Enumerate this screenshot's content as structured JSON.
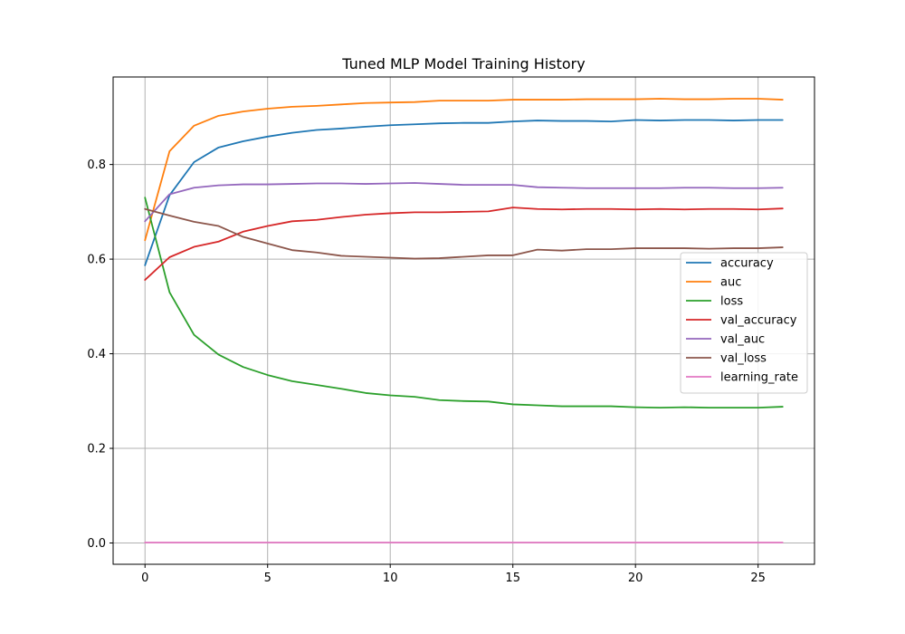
{
  "chart_data": {
    "type": "line",
    "title": "Tuned MLP Model Training History",
    "xlabel": "",
    "ylabel": "",
    "xlim": [
      -1.3,
      27.3
    ],
    "ylim": [
      -0.045,
      0.985
    ],
    "x_ticks": [
      0,
      5,
      10,
      15,
      20,
      25
    ],
    "y_ticks": [
      0.0,
      0.2,
      0.4,
      0.6,
      0.8
    ],
    "y_tick_labels": [
      "0.0",
      "0.2",
      "0.4",
      "0.6",
      "0.8"
    ],
    "grid": true,
    "legend_position": "center-right",
    "x": [
      0,
      1,
      2,
      3,
      4,
      5,
      6,
      7,
      8,
      9,
      10,
      11,
      12,
      13,
      14,
      15,
      16,
      17,
      18,
      19,
      20,
      21,
      22,
      23,
      24,
      25,
      26
    ],
    "series": [
      {
        "name": "accuracy",
        "color": "#1f77b4",
        "values": [
          0.587,
          0.735,
          0.805,
          0.836,
          0.849,
          0.859,
          0.867,
          0.873,
          0.876,
          0.88,
          0.883,
          0.885,
          0.887,
          0.888,
          0.888,
          0.891,
          0.893,
          0.892,
          0.892,
          0.891,
          0.894,
          0.893,
          0.894,
          0.894,
          0.893,
          0.894,
          0.894
        ]
      },
      {
        "name": "auc",
        "color": "#ff7f0e",
        "values": [
          0.64,
          0.828,
          0.882,
          0.903,
          0.912,
          0.918,
          0.922,
          0.924,
          0.927,
          0.93,
          0.931,
          0.932,
          0.935,
          0.935,
          0.935,
          0.937,
          0.937,
          0.937,
          0.938,
          0.938,
          0.938,
          0.939,
          0.938,
          0.938,
          0.939,
          0.939,
          0.937
        ]
      },
      {
        "name": "loss",
        "color": "#2ca02c",
        "values": [
          0.73,
          0.53,
          0.44,
          0.398,
          0.372,
          0.355,
          0.342,
          0.334,
          0.326,
          0.317,
          0.312,
          0.309,
          0.302,
          0.3,
          0.299,
          0.293,
          0.291,
          0.289,
          0.289,
          0.289,
          0.287,
          0.286,
          0.287,
          0.286,
          0.286,
          0.286,
          0.288
        ]
      },
      {
        "name": "val_accuracy",
        "color": "#d62728",
        "values": [
          0.556,
          0.604,
          0.626,
          0.637,
          0.658,
          0.67,
          0.68,
          0.683,
          0.689,
          0.694,
          0.697,
          0.699,
          0.699,
          0.7,
          0.701,
          0.709,
          0.706,
          0.705,
          0.706,
          0.706,
          0.705,
          0.706,
          0.705,
          0.706,
          0.706,
          0.705,
          0.707
        ]
      },
      {
        "name": "val_auc",
        "color": "#9467bd",
        "values": [
          0.68,
          0.737,
          0.751,
          0.756,
          0.758,
          0.758,
          0.759,
          0.76,
          0.76,
          0.759,
          0.76,
          0.761,
          0.759,
          0.757,
          0.757,
          0.757,
          0.752,
          0.751,
          0.75,
          0.75,
          0.75,
          0.75,
          0.751,
          0.751,
          0.75,
          0.75,
          0.751
        ]
      },
      {
        "name": "val_loss",
        "color": "#8c564b",
        "values": [
          0.706,
          0.692,
          0.679,
          0.67,
          0.647,
          0.633,
          0.619,
          0.614,
          0.607,
          0.605,
          0.603,
          0.601,
          0.602,
          0.605,
          0.608,
          0.608,
          0.62,
          0.618,
          0.621,
          0.621,
          0.623,
          0.623,
          0.623,
          0.622,
          0.623,
          0.623,
          0.625
        ]
      },
      {
        "name": "learning_rate",
        "color": "#e377c2",
        "values": [
          0.001,
          0.001,
          0.001,
          0.001,
          0.001,
          0.001,
          0.001,
          0.001,
          0.001,
          0.001,
          0.001,
          0.001,
          0.001,
          0.001,
          0.001,
          0.001,
          0.001,
          0.001,
          0.001,
          0.001,
          0.001,
          0.001,
          0.001,
          0.001,
          0.001,
          0.001,
          0.001
        ]
      }
    ]
  }
}
